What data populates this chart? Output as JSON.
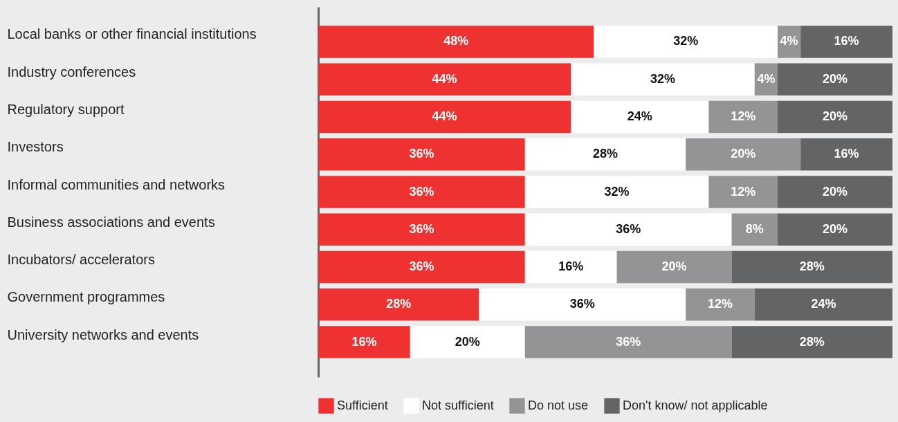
{
  "chart_data": {
    "type": "bar",
    "orientation": "horizontal",
    "stacked": true,
    "legend": "bottom",
    "categories": [
      "Local banks or other financial institutions",
      "Industry conferences",
      "Regulatory support",
      "Investors",
      "Informal communities and networks",
      "Business associations and events",
      "Incubators/ accelerators",
      "Government programmes",
      "University networks and events"
    ],
    "series": [
      {
        "name": "Sufficient",
        "color": "#ee3131",
        "values": [
          48,
          44,
          44,
          36,
          36,
          36,
          36,
          28,
          16
        ],
        "value_labels": [
          "48%",
          "44%",
          "44%",
          "36%",
          "36%",
          "36%",
          "36%",
          "28%",
          "16%"
        ]
      },
      {
        "name": "Not sufficient",
        "color": "#ffffff",
        "values": [
          32,
          32,
          24,
          28,
          32,
          36,
          16,
          36,
          20
        ],
        "value_labels": [
          "32%",
          "32%",
          "24%",
          "28%",
          "32%",
          "36%",
          "16%",
          "36%",
          "20%"
        ]
      },
      {
        "name": "Do not use",
        "color": "#949496",
        "values": [
          4,
          4,
          12,
          20,
          12,
          8,
          20,
          12,
          36
        ],
        "value_labels": [
          "4%",
          "4%",
          "12%",
          "20%",
          "12%",
          "8%",
          "20%",
          "12%",
          "36%"
        ]
      },
      {
        "name": "Don't know/ not applicable",
        "color": "#636466",
        "values": [
          16,
          20,
          20,
          16,
          20,
          20,
          28,
          24,
          28
        ],
        "value_labels": [
          "16%",
          "20%",
          "20%",
          "16%",
          "20%",
          "20%",
          "28%",
          "24%",
          "28%"
        ]
      }
    ]
  }
}
